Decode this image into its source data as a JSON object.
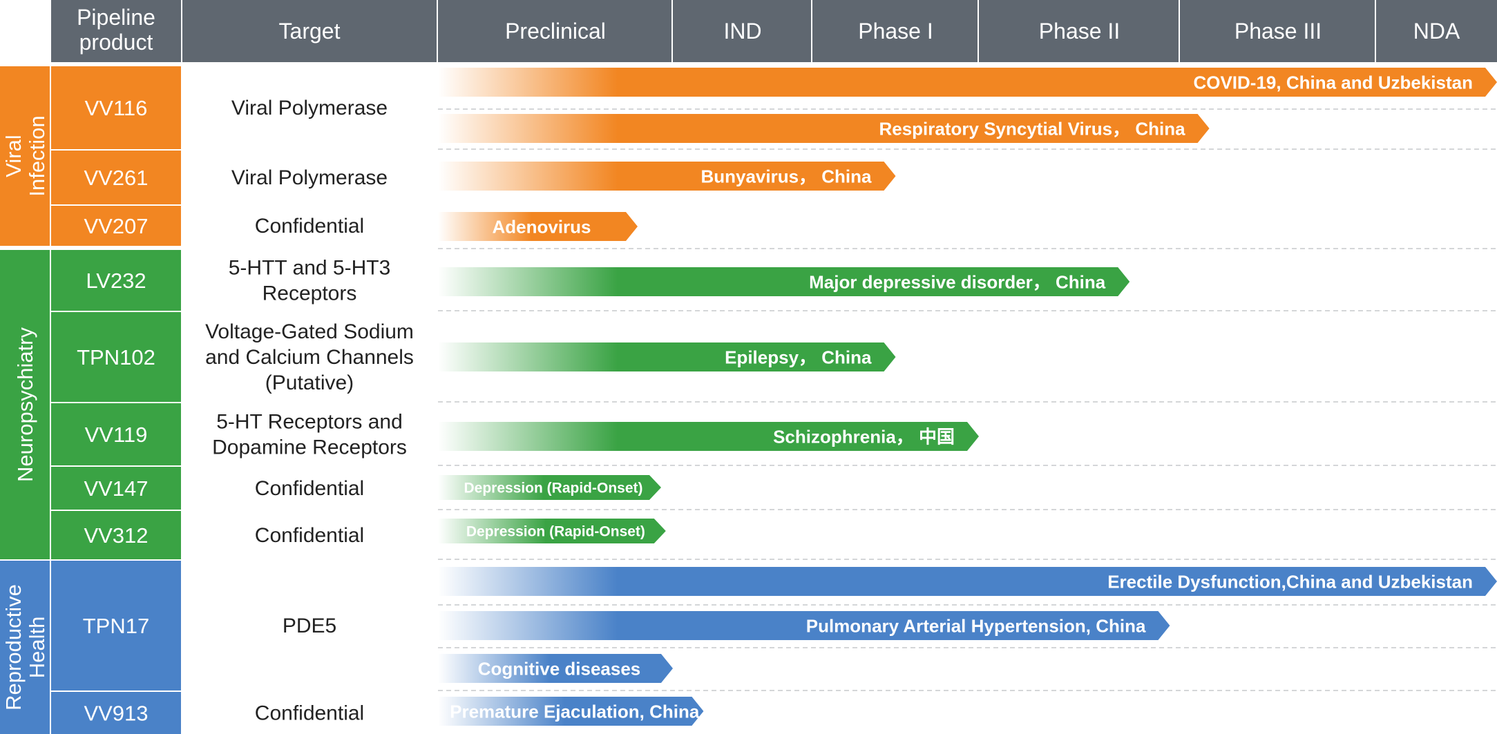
{
  "colors": {
    "header_bg": "#5f6770",
    "viral": "#f28622",
    "neuro": "#3aa344",
    "repro": "#4a82c8"
  },
  "headers": {
    "product": [
      "Pipeline",
      "product"
    ],
    "target": "Target",
    "stages": [
      "Preclinical",
      "IND",
      "Phase I",
      "Phase II",
      "Phase III",
      "NDA"
    ]
  },
  "chart_data": {
    "type": "pipeline-bar",
    "stages": [
      "Preclinical",
      "IND",
      "Phase I",
      "Phase II",
      "Phase III",
      "NDA"
    ],
    "categories": [
      {
        "name": "Viral Infection",
        "color": "#f28622",
        "products": [
          {
            "name": "VV116",
            "target": [
              "Viral Polymerase"
            ],
            "programs": [
              {
                "label": "COVID-19, China and Uzbekistan",
                "progress_stage_index": 6.0
              },
              {
                "label": "Respiratory Syncytial Virus， China",
                "progress_stage_index": 4.15
              }
            ]
          },
          {
            "name": "VV261",
            "target": [
              "Viral Polymerase"
            ],
            "programs": [
              {
                "label": "Bunyavirus， China",
                "progress_stage_index": 2.5
              }
            ]
          },
          {
            "name": "VV207",
            "target": [
              "Confidential"
            ],
            "programs": [
              {
                "label": "Adenovirus",
                "progress_stage_index": 0.85
              }
            ]
          }
        ]
      },
      {
        "name": "Neuropsychiatry",
        "color": "#3aa344",
        "products": [
          {
            "name": "LV232",
            "target": [
              "5-HTT and 5-HT3",
              "Receptors"
            ],
            "programs": [
              {
                "label": "Major depressive disorder， China",
                "progress_stage_index": 3.75
              }
            ]
          },
          {
            "name": "TPN102",
            "target": [
              "Voltage-Gated Sodium",
              "and Calcium Channels",
              "(Putative)"
            ],
            "programs": [
              {
                "label": "Epilepsy， China",
                "progress_stage_index": 2.5
              }
            ]
          },
          {
            "name": "VV119",
            "target": [
              "5-HT Receptors and",
              "Dopamine Receptors"
            ],
            "programs": [
              {
                "label": "Schizophrenia， 中国",
                "progress_stage_index": 3.0
              }
            ]
          },
          {
            "name": "VV147",
            "target": [
              "Confidential"
            ],
            "programs": [
              {
                "label": "Depression (Rapid-Onset)",
                "progress_stage_index": 0.95
              }
            ]
          },
          {
            "name": "VV312",
            "target": [
              "Confidential"
            ],
            "programs": [
              {
                "label": "Depression (Rapid-Onset)",
                "progress_stage_index": 0.97
              }
            ]
          }
        ]
      },
      {
        "name": "Reproductive Health",
        "color": "#4a82c8",
        "products": [
          {
            "name": "TPN17",
            "target": [
              "PDE5"
            ],
            "programs": [
              {
                "label": "Erectile Dysfunction,China and Uzbekistan",
                "progress_stage_index": 6.0
              },
              {
                "label": "Pulmonary Arterial Hypertension, China",
                "progress_stage_index": 3.95
              },
              {
                "label": "Cognitive diseases",
                "progress_stage_index": 1.0
              }
            ]
          },
          {
            "name": "VV913",
            "target": [
              "Confidential"
            ],
            "programs": [
              {
                "label": "Premature Ejaculation, China",
                "progress_stage_index": 1.22
              }
            ]
          }
        ]
      }
    ]
  }
}
